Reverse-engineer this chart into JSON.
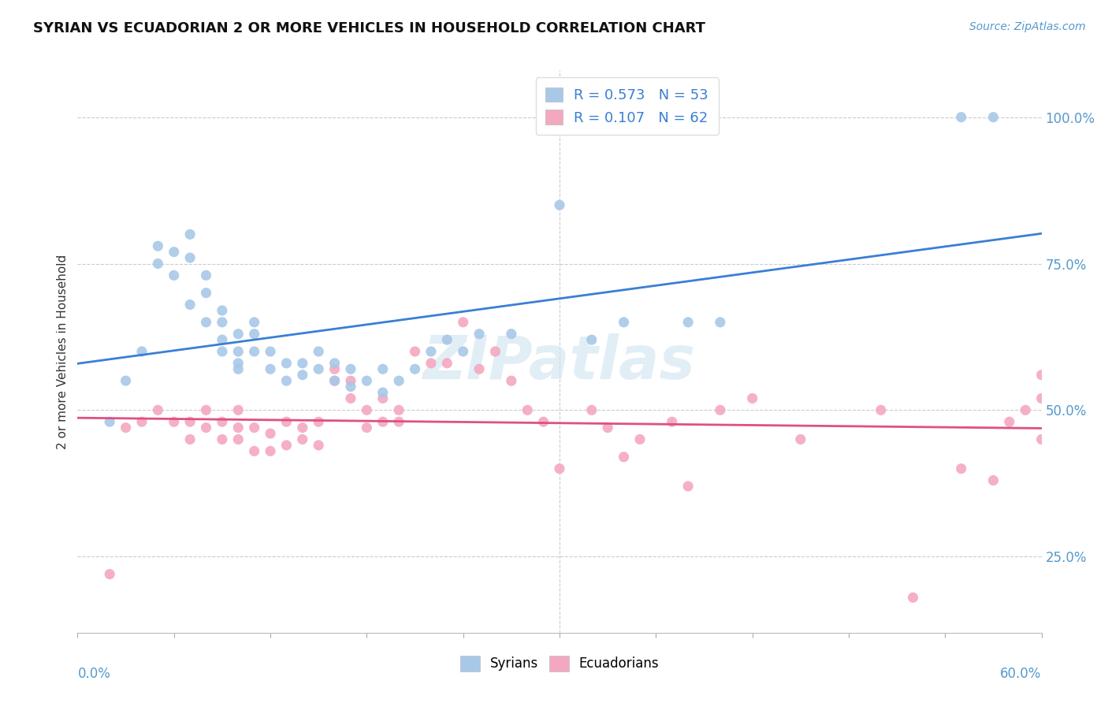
{
  "title": "SYRIAN VS ECUADORIAN 2 OR MORE VEHICLES IN HOUSEHOLD CORRELATION CHART",
  "source_text": "Source: ZipAtlas.com",
  "xlabel_bottom_left": "0.0%",
  "xlabel_bottom_right": "60.0%",
  "ylabel_right_ticks": [
    "25.0%",
    "50.0%",
    "75.0%",
    "100.0%"
  ],
  "ylabel_label": "2 or more Vehicles in Household",
  "legend_entries": [
    {
      "label_r": "R = 0.573",
      "label_n": "N = 53"
    },
    {
      "label_r": "R = 0.107",
      "label_n": "N = 62"
    }
  ],
  "bottom_legend": [
    "Syrians",
    "Ecuadorians"
  ],
  "blue_color": "#a8c8e8",
  "pink_color": "#f4a8c0",
  "blue_line_color": "#3a7fd4",
  "pink_line_color": "#e05080",
  "watermark": "ZIPatlas",
  "xlim": [
    0.0,
    0.6
  ],
  "ylim": [
    0.12,
    1.08
  ],
  "blue_scatter_x": [
    0.02,
    0.03,
    0.04,
    0.05,
    0.05,
    0.06,
    0.06,
    0.07,
    0.07,
    0.07,
    0.08,
    0.08,
    0.08,
    0.09,
    0.09,
    0.09,
    0.09,
    0.1,
    0.1,
    0.1,
    0.1,
    0.11,
    0.11,
    0.11,
    0.12,
    0.12,
    0.13,
    0.13,
    0.14,
    0.14,
    0.15,
    0.15,
    0.16,
    0.16,
    0.17,
    0.17,
    0.18,
    0.19,
    0.19,
    0.2,
    0.21,
    0.22,
    0.23,
    0.24,
    0.25,
    0.27,
    0.3,
    0.32,
    0.34,
    0.38,
    0.4,
    0.55,
    0.57
  ],
  "blue_scatter_y": [
    0.48,
    0.55,
    0.6,
    0.75,
    0.78,
    0.77,
    0.73,
    0.8,
    0.76,
    0.68,
    0.73,
    0.7,
    0.65,
    0.67,
    0.65,
    0.62,
    0.6,
    0.63,
    0.6,
    0.58,
    0.57,
    0.65,
    0.63,
    0.6,
    0.6,
    0.57,
    0.55,
    0.58,
    0.56,
    0.58,
    0.6,
    0.57,
    0.55,
    0.58,
    0.54,
    0.57,
    0.55,
    0.53,
    0.57,
    0.55,
    0.57,
    0.6,
    0.62,
    0.6,
    0.63,
    0.63,
    0.85,
    0.62,
    0.65,
    0.65,
    0.65,
    1.0,
    1.0
  ],
  "pink_scatter_x": [
    0.02,
    0.03,
    0.04,
    0.05,
    0.06,
    0.07,
    0.07,
    0.08,
    0.08,
    0.09,
    0.09,
    0.1,
    0.1,
    0.1,
    0.11,
    0.11,
    0.12,
    0.12,
    0.13,
    0.13,
    0.14,
    0.14,
    0.15,
    0.15,
    0.16,
    0.16,
    0.17,
    0.17,
    0.18,
    0.18,
    0.19,
    0.19,
    0.2,
    0.2,
    0.21,
    0.22,
    0.23,
    0.24,
    0.25,
    0.26,
    0.27,
    0.28,
    0.29,
    0.3,
    0.32,
    0.33,
    0.34,
    0.35,
    0.37,
    0.38,
    0.4,
    0.42,
    0.45,
    0.5,
    0.52,
    0.55,
    0.57,
    0.58,
    0.59,
    0.6,
    0.6,
    0.6
  ],
  "pink_scatter_y": [
    0.22,
    0.47,
    0.48,
    0.5,
    0.48,
    0.48,
    0.45,
    0.5,
    0.47,
    0.45,
    0.48,
    0.5,
    0.47,
    0.45,
    0.43,
    0.47,
    0.46,
    0.43,
    0.48,
    0.44,
    0.45,
    0.47,
    0.48,
    0.44,
    0.55,
    0.57,
    0.55,
    0.52,
    0.5,
    0.47,
    0.52,
    0.48,
    0.5,
    0.48,
    0.6,
    0.58,
    0.58,
    0.65,
    0.57,
    0.6,
    0.55,
    0.5,
    0.48,
    0.4,
    0.5,
    0.47,
    0.42,
    0.45,
    0.48,
    0.37,
    0.5,
    0.52,
    0.45,
    0.5,
    0.18,
    0.4,
    0.38,
    0.48,
    0.5,
    0.52,
    0.56,
    0.45
  ]
}
